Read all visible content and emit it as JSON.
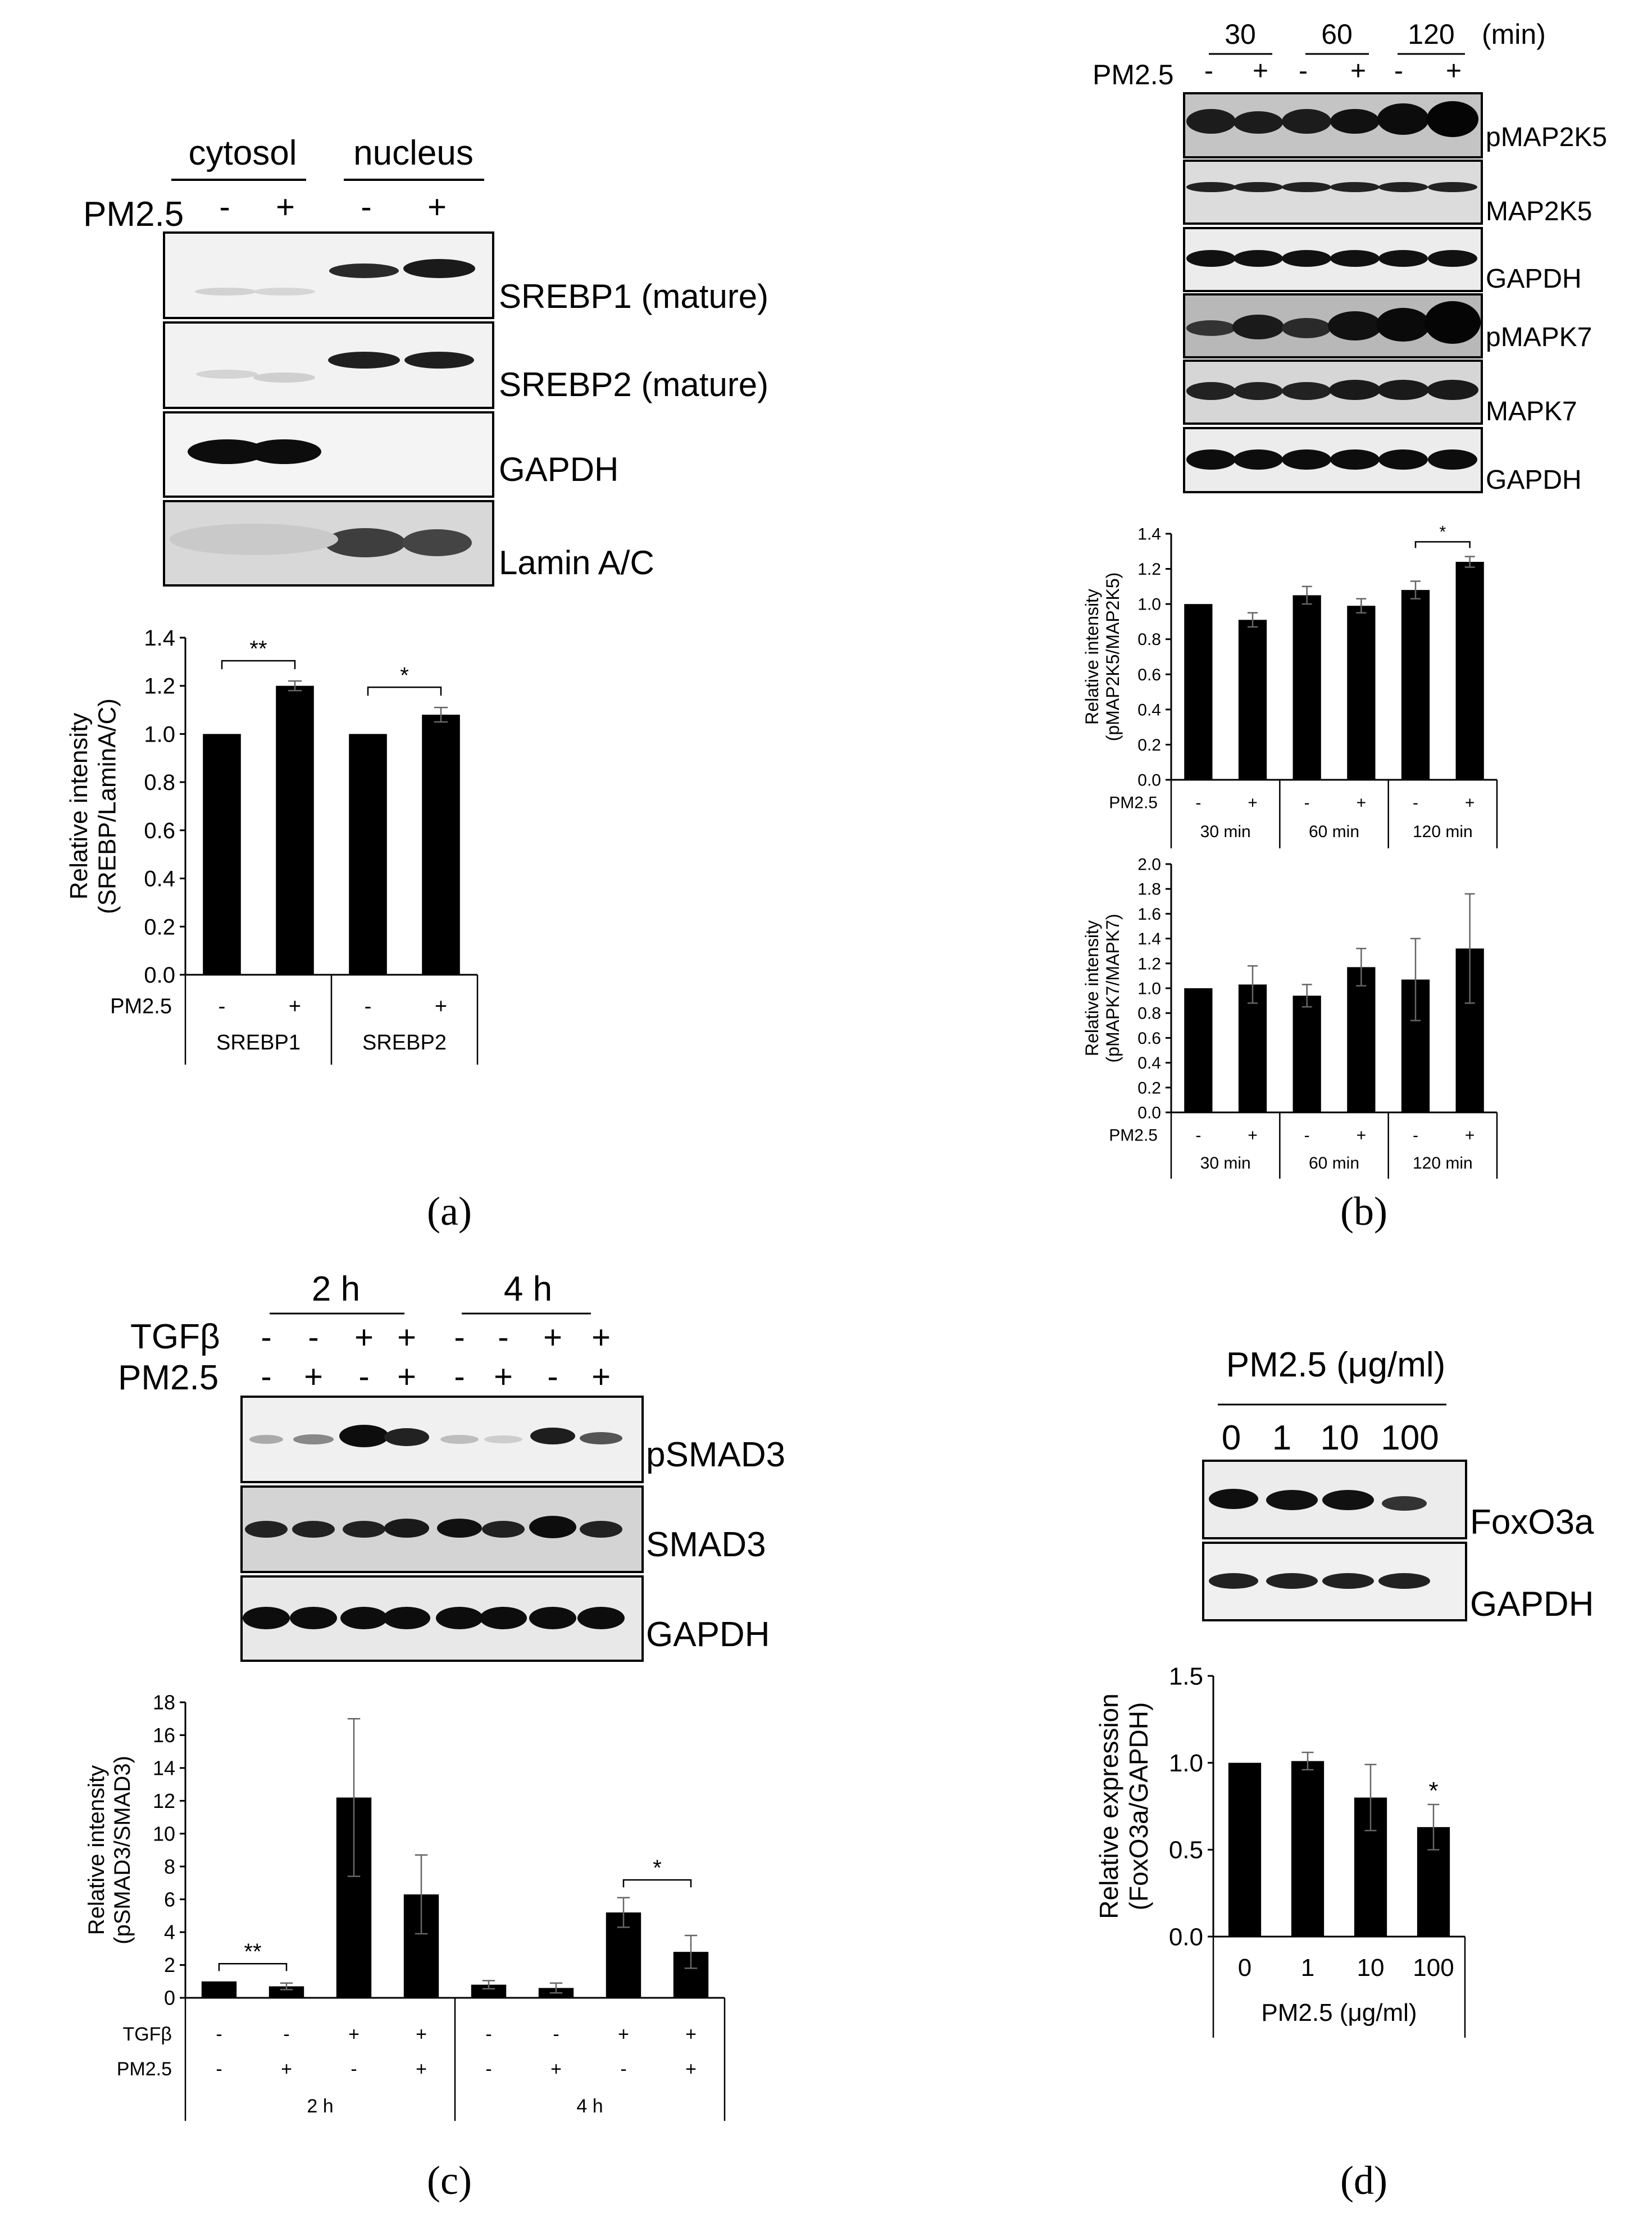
{
  "figure": {
    "panel_labels": [
      "(a)",
      "(b)",
      "(c)",
      "(d)"
    ]
  },
  "panels": {
    "a": {
      "blot": {
        "group_headers": [
          "cytosol",
          "nucleus"
        ],
        "treatment_label": "PM2.5",
        "treatment_signs": [
          "-",
          "+",
          "-",
          "+"
        ],
        "rows": [
          "SREBP1 (mature)",
          "SREBP2 (mature)",
          "GAPDH",
          "Lamin A/C"
        ]
      }
    },
    "b": {
      "blot": {
        "time_headers": [
          "30",
          "60",
          "120"
        ],
        "unit": "(min)",
        "treatment_label": "PM2.5",
        "treatment_signs": [
          "-",
          "+",
          "-",
          "+",
          "-",
          "+"
        ],
        "rows": [
          "pMAP2K5",
          "MAP2K5",
          "GAPDH",
          "pMAPK7",
          "MAPK7",
          "GAPDH"
        ]
      }
    },
    "c": {
      "blot": {
        "time_headers": [
          "2 h",
          "4 h"
        ],
        "rows_labels": [
          "TGFβ",
          "PM2.5"
        ],
        "tgfb_signs": [
          "-",
          "-",
          "+",
          "+",
          "-",
          "-",
          "+",
          "+"
        ],
        "pm_signs": [
          "-",
          "+",
          "-",
          "+",
          "-",
          "+",
          "-",
          "+"
        ],
        "rows": [
          "pSMAD3",
          "SMAD3",
          "GAPDH"
        ]
      }
    },
    "d": {
      "blot": {
        "header": "PM2.5 (μg/ml)",
        "doses": [
          "0",
          "1",
          "10",
          "100"
        ],
        "rows": [
          "FoxO3a",
          "GAPDH"
        ]
      }
    }
  },
  "chart_data": [
    {
      "id": "a",
      "type": "bar",
      "ylabel": [
        "Relative intensity",
        "(SREBP/LaminA/C)"
      ],
      "ylim": [
        0,
        1.4
      ],
      "yticks": [
        "0.0",
        "0.2",
        "0.4",
        "0.6",
        "0.8",
        "1.0",
        "1.2",
        "1.4"
      ],
      "row_labels": [
        "PM2.5"
      ],
      "signs": [
        [
          "-",
          "+",
          "-",
          "+"
        ]
      ],
      "groups": [
        "SREBP1",
        "SREBP2"
      ],
      "values": [
        1.0,
        1.2,
        1.0,
        1.08
      ],
      "errors": [
        0,
        0.02,
        0,
        0.03
      ],
      "significance": [
        {
          "from": 0,
          "to": 1,
          "label": "**"
        },
        {
          "from": 2,
          "to": 3,
          "label": "*"
        }
      ]
    },
    {
      "id": "b1",
      "type": "bar",
      "ylabel": [
        "Relative intensity",
        "(pMAP2K5/MAP2K5)"
      ],
      "ylim": [
        0,
        1.4
      ],
      "yticks": [
        "0.0",
        "0.2",
        "0.4",
        "0.6",
        "0.8",
        "1.0",
        "1.2",
        "1.4"
      ],
      "row_labels": [
        "PM2.5"
      ],
      "signs": [
        [
          "-",
          "+",
          "-",
          "+",
          "-",
          "+"
        ]
      ],
      "groups": [
        "30 min",
        "60 min",
        "120 min"
      ],
      "values": [
        1.0,
        0.91,
        1.05,
        0.99,
        1.08,
        1.24
      ],
      "errors": [
        0,
        0.04,
        0.05,
        0.04,
        0.05,
        0.03
      ],
      "significance": [
        {
          "from": 4,
          "to": 5,
          "label": "*"
        }
      ]
    },
    {
      "id": "b2",
      "type": "bar",
      "ylabel": [
        "Relative intensity",
        "(pMAPK7/MAPK7)"
      ],
      "ylim": [
        0,
        2.0
      ],
      "yticks": [
        "0.0",
        "0.2",
        "0.4",
        "0.6",
        "0.8",
        "1.0",
        "1.2",
        "1.4",
        "1.6",
        "1.8",
        "2.0"
      ],
      "row_labels": [
        "PM2.5"
      ],
      "signs": [
        [
          "-",
          "+",
          "-",
          "+",
          "-",
          "+"
        ]
      ],
      "groups": [
        "30 min",
        "60 min",
        "120 min"
      ],
      "values": [
        1.0,
        1.03,
        0.94,
        1.17,
        1.07,
        1.32
      ],
      "errors": [
        0,
        0.15,
        0.09,
        0.15,
        0.33,
        0.44
      ],
      "significance": []
    },
    {
      "id": "c",
      "type": "bar",
      "ylabel": [
        "Relative intensity",
        "(pSMAD3/SMAD3)"
      ],
      "ylim": [
        0,
        18
      ],
      "yticks": [
        "0",
        "2",
        "4",
        "6",
        "8",
        "10",
        "12",
        "14",
        "16",
        "18"
      ],
      "row_labels": [
        "TGFβ",
        "PM2.5"
      ],
      "signs": [
        [
          "-",
          "-",
          "+",
          "+",
          "-",
          "-",
          "+",
          "+"
        ],
        [
          "-",
          "+",
          "-",
          "+",
          "-",
          "+",
          "-",
          "+"
        ]
      ],
      "groups": [
        "2 h",
        "4 h"
      ],
      "values": [
        1.0,
        0.7,
        12.2,
        6.3,
        0.8,
        0.6,
        5.2,
        2.8
      ],
      "errors": [
        0,
        0.2,
        4.8,
        2.4,
        0.25,
        0.3,
        0.9,
        1.0
      ],
      "significance": [
        {
          "from": 0,
          "to": 1,
          "label": "**"
        },
        {
          "from": 6,
          "to": 7,
          "label": "*"
        }
      ]
    },
    {
      "id": "d",
      "type": "bar",
      "ylabel": [
        "Relative expression",
        "(FoxO3a/GAPDH)"
      ],
      "ylim": [
        0,
        1.5
      ],
      "yticks": [
        "0.0",
        "0.5",
        "1.0",
        "1.5"
      ],
      "categories": [
        "0",
        "1",
        "10",
        "100"
      ],
      "xlabel": "PM2.5 (μg/ml)",
      "values": [
        1.0,
        1.01,
        0.8,
        0.63
      ],
      "errors": [
        0,
        0.05,
        0.19,
        0.13
      ],
      "star_on": [
        {
          "index": 3,
          "label": "*"
        }
      ]
    }
  ]
}
